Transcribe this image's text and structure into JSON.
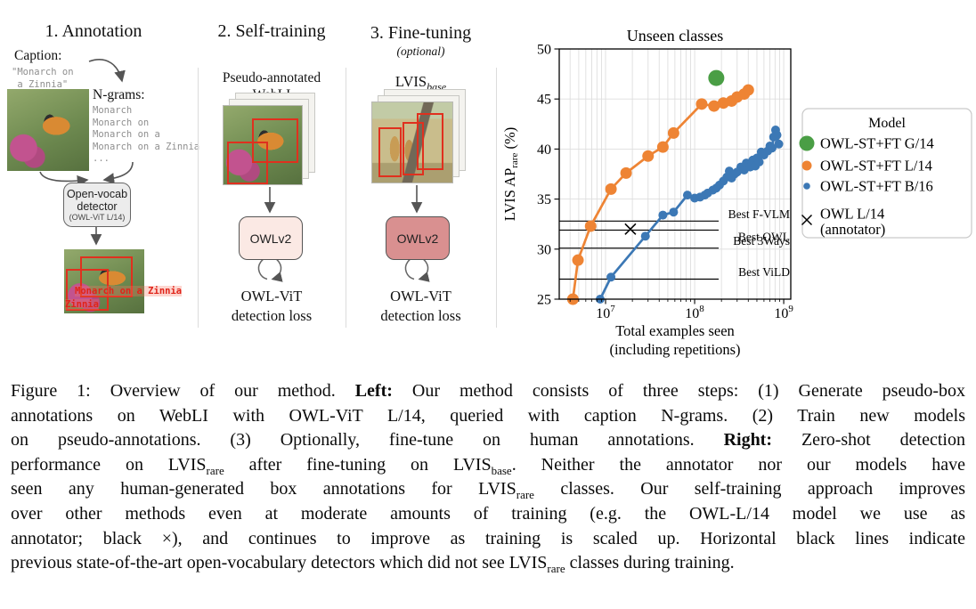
{
  "panels": {
    "annotation": {
      "title": "1. Annotation",
      "caption_label": "Caption:",
      "caption_lines": [
        "\"Monarch on",
        " a Zinnia\""
      ],
      "ngrams_label": "N-grams:",
      "ngrams": [
        "Monarch",
        "Monarch on",
        "Monarch on a",
        "Monarch on a Zinnia",
        "..."
      ],
      "detector_box": {
        "line1": "Open-vocab",
        "line2": "detector",
        "line3": "(OWL-ViT L/14)"
      },
      "detections": {
        "big": "Monarch on a Zinnia",
        "small": "Zinnia"
      }
    },
    "self_training": {
      "title": "2. Self-training",
      "dataset_line1": "Pseudo-annotated",
      "dataset_line2": "WebLI",
      "model_box": "OWLv2",
      "loss_line1": "OWL-ViT",
      "loss_line2": "detection loss"
    },
    "fine_tuning": {
      "title": "3. Fine-tuning",
      "subtitle": "(optional)",
      "dataset_main": "LVIS",
      "dataset_sub": "base",
      "model_box": "OWLv2",
      "loss_line1": "OWL-ViT",
      "loss_line2": "detection loss"
    }
  },
  "chart_data": {
    "type": "scatter",
    "title": "Unseen classes",
    "ylabel": {
      "main": "LVIS AP",
      "sub": "rare",
      "suffix": " (%)"
    },
    "xlabel_lines": [
      "Total examples seen",
      "(including repetitions)"
    ],
    "xscale": "log",
    "xlim": [
      3020000,
      1200000000
    ],
    "ylim": [
      25,
      50
    ],
    "yticks": [
      25,
      30,
      35,
      40,
      45,
      50
    ],
    "xticks": [
      {
        "value": 10000000,
        "base": "10",
        "exp": "7"
      },
      {
        "value": 100000000,
        "base": "10",
        "exp": "8"
      },
      {
        "value": 1000000000,
        "base": "10",
        "exp": "9"
      }
    ],
    "grid": true,
    "baselines": [
      {
        "label": "Best F-VLM",
        "value": 32.8,
        "label_side": "above"
      },
      {
        "label": "Best OWL",
        "value": 31.9,
        "label_side": "below"
      },
      {
        "label": "Best 3Ways",
        "value": 30.1,
        "label_side": "above"
      },
      {
        "label": "Best ViLD",
        "value": 27.0,
        "label_side": "above"
      }
    ],
    "series": [
      {
        "name": "OWL-ST+FT L/14",
        "color": "#ee8434",
        "line": true,
        "marker": "circle",
        "marker_r": 6.5,
        "points": [
          [
            4300000,
            25.0
          ],
          [
            4900000,
            28.9
          ],
          [
            6800000,
            32.3
          ],
          [
            11500000,
            36.0
          ],
          [
            17000000,
            37.6
          ],
          [
            30000000,
            39.3
          ],
          [
            44000000,
            40.2
          ],
          [
            58000000,
            41.6
          ],
          [
            120000000,
            44.5
          ],
          [
            165000000,
            44.3
          ],
          [
            210000000,
            44.6
          ],
          [
            260000000,
            44.8
          ],
          [
            300000000,
            45.2
          ],
          [
            360000000,
            45.5
          ],
          [
            400000000,
            45.9
          ]
        ]
      },
      {
        "name": "OWL-ST+FT B/16",
        "color": "#3c78b5",
        "line": true,
        "marker": "circle",
        "marker_r": 5,
        "points": [
          [
            8700000,
            25.0
          ],
          [
            11500000,
            27.2
          ],
          [
            28000000,
            31.3
          ],
          [
            44000000,
            33.4
          ],
          [
            58000000,
            33.7
          ],
          [
            83000000,
            35.4
          ],
          [
            100000000,
            35.1
          ],
          [
            115000000,
            35.2
          ],
          [
            130000000,
            35.4
          ],
          [
            140000000,
            35.6
          ],
          [
            160000000,
            35.9
          ],
          [
            175000000,
            36.1
          ],
          [
            190000000,
            36.4
          ],
          [
            210000000,
            36.8
          ],
          [
            230000000,
            37.2
          ],
          [
            245000000,
            37.8
          ],
          [
            260000000,
            37.1
          ],
          [
            280000000,
            37.5
          ],
          [
            300000000,
            37.7
          ],
          [
            330000000,
            38.2
          ],
          [
            360000000,
            37.9
          ],
          [
            380000000,
            38.6
          ],
          [
            420000000,
            38.2
          ],
          [
            450000000,
            38.9
          ],
          [
            480000000,
            38.3
          ],
          [
            500000000,
            39.1
          ],
          [
            530000000,
            38.7
          ],
          [
            560000000,
            39.7
          ],
          [
            600000000,
            39.4
          ],
          [
            660000000,
            39.8
          ],
          [
            700000000,
            40.3
          ],
          [
            740000000,
            40.1
          ],
          [
            770000000,
            41.2
          ],
          [
            810000000,
            41.9
          ],
          [
            840000000,
            41.4
          ],
          [
            880000000,
            40.5
          ]
        ]
      },
      {
        "name": "OWL-ST+FT G/14",
        "color": "#4a9e45",
        "line": false,
        "marker": "circle",
        "marker_r": 9,
        "points": [
          [
            175000000,
            47.1
          ]
        ]
      },
      {
        "name": "OWL L/14 (annotator)",
        "color": "#000000",
        "line": false,
        "marker": "x",
        "marker_r": 6,
        "points": [
          [
            19000000,
            32.0
          ]
        ]
      }
    ],
    "legend": {
      "title": "Model",
      "position": "right",
      "entries": [
        {
          "label": "OWL-ST+FT G/14",
          "marker": "circle",
          "color": "#4a9e45",
          "r": 8.5
        },
        {
          "label": "OWL-ST+FT L/14",
          "marker": "circle",
          "color": "#ee8434",
          "r": 5.5
        },
        {
          "label": "OWL-ST+FT B/16",
          "marker": "circle",
          "color": "#3c78b5",
          "r": 3.8
        },
        {
          "label": "OWL L/14",
          "label2": "(annotator)",
          "marker": "x",
          "color": "#000000",
          "r": 5.5
        }
      ]
    }
  },
  "caption": {
    "lines": [
      [
        {
          "t": "Figure 1: Overview of our method. "
        },
        {
          "t": "Left:",
          "b": 1
        },
        {
          "t": " Our method consists of three steps: (1) Generate pseudo-box"
        }
      ],
      [
        {
          "t": "annotations on WebLI with OWL-ViT L/14, queried with caption N-grams. (2) Train new models"
        }
      ],
      [
        {
          "t": "on pseudo-annotations. (3) Optionally, fine-tune on human annotations. "
        },
        {
          "t": "Right:",
          "b": 1
        },
        {
          "t": " Zero-shot detection"
        }
      ],
      [
        {
          "t": "performance on LVIS"
        },
        {
          "t": "rare",
          "s": 1
        },
        {
          "t": " after fine-tuning on LVIS"
        },
        {
          "t": "base",
          "s": 1
        },
        {
          "t": ". Neither the annotator nor our models have"
        }
      ],
      [
        {
          "t": "seen any human-generated box annotations for LVIS"
        },
        {
          "t": "rare",
          "s": 1
        },
        {
          "t": " classes. Our self-training approach improves"
        }
      ],
      [
        {
          "t": "over other methods even at moderate amounts of training (e.g. the OWL-L/14 model we use as"
        }
      ],
      [
        {
          "t": "annotator; black ×), and continues to improve as training is scaled up. Horizontal black lines indicate"
        }
      ],
      [
        {
          "t": "previous state-of-the-art open-vocabulary detectors which did not see LVIS"
        },
        {
          "t": "rare",
          "s": 1
        },
        {
          "t": " classes during training."
        }
      ]
    ]
  }
}
